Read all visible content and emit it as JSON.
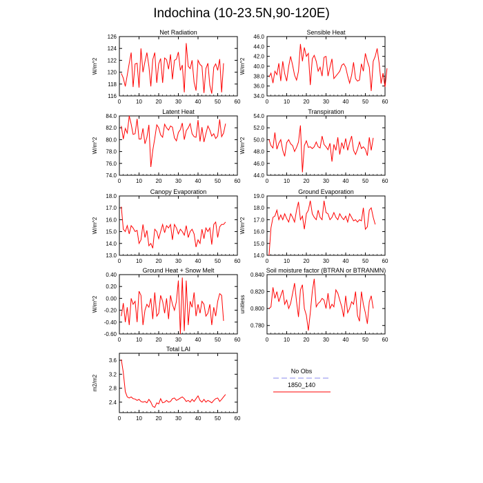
{
  "title": "Indochina (10-23.5N,90-120E)",
  "legend": {
    "items": [
      {
        "label": "No Obs",
        "color": "#8888ee",
        "dashed": true
      },
      {
        "label": "1850_140",
        "color": "#ff0000",
        "dashed": false
      }
    ]
  },
  "chart_data": [
    {
      "type": "line",
      "title": "Net Radiation",
      "xlabel": "",
      "ylabel": "W/m^2",
      "xlim": [
        0,
        60
      ],
      "ylim": [
        116,
        126
      ],
      "xticks": [
        "0",
        "10",
        "20",
        "30",
        "40",
        "50",
        "60"
      ],
      "yticks": [
        "116",
        "118",
        "120",
        "122",
        "124",
        "126"
      ],
      "series": [
        {
          "name": "1850_140",
          "color": "#ff0000",
          "values": [
            119.8,
            119.0,
            117.6,
            119.5,
            121.5,
            123.3,
            117.5,
            121.4,
            121.5,
            117.4,
            124.0,
            120.0,
            121.8,
            123.3,
            121.0,
            117.6,
            122.1,
            123.3,
            118.2,
            121.4,
            122.3,
            118.2,
            122.4,
            122.1,
            120.5,
            123.0,
            118.8,
            122.0,
            122.2,
            123.4,
            120.3,
            121.2,
            116.6,
            124.9,
            121.0,
            120.6,
            122.0,
            118.3,
            116.9,
            122.0,
            121.3,
            121.0,
            116.5,
            120.6,
            121.5,
            117.8,
            116.4,
            120.8,
            121.4,
            120.3,
            122.2,
            116.6,
            121.5
          ]
        }
      ]
    },
    {
      "type": "line",
      "title": "Sensible Heat",
      "xlabel": "",
      "ylabel": "W/m^2",
      "xlim": [
        0,
        60
      ],
      "ylim": [
        34,
        46
      ],
      "xticks": [
        "0",
        "10",
        "20",
        "30",
        "40",
        "50",
        "60"
      ],
      "yticks": [
        "34.0",
        "36.0",
        "38.0",
        "40.0",
        "42.0",
        "44.0",
        "46.0"
      ],
      "series": [
        {
          "name": "1850_140",
          "color": "#ff0000",
          "values": [
            37.8,
            38.6,
            36.6,
            39.0,
            38.3,
            40.6,
            37.0,
            41.0,
            38.5,
            37.0,
            40.0,
            42.0,
            40.2,
            38.2,
            37.2,
            39.0,
            44.5,
            41.0,
            43.8,
            42.0,
            42.6,
            36.2,
            41.5,
            42.2,
            41.0,
            39.0,
            39.8,
            38.0,
            41.8,
            42.0,
            38.0,
            39.8,
            41.5,
            37.5,
            38.0,
            38.5,
            39.0,
            40.2,
            40.5,
            39.8,
            38.0,
            36.6,
            38.2,
            40.8,
            37.5,
            37.0,
            37.2,
            40.5,
            39.0,
            42.6,
            41.0,
            39.8,
            35.0,
            41.0,
            42.0,
            43.6,
            40.6,
            36.5,
            38.6,
            35.8,
            39.6
          ]
        }
      ]
    },
    {
      "type": "line",
      "title": "Latent Heat",
      "xlabel": "",
      "ylabel": "W/m^2",
      "xlim": [
        0,
        60
      ],
      "ylim": [
        74,
        84
      ],
      "xticks": [
        "0",
        "10",
        "20",
        "30",
        "40",
        "50",
        "60"
      ],
      "yticks": [
        "74.0",
        "76.0",
        "78.0",
        "80.0",
        "82.0",
        "84.0"
      ],
      "series": [
        {
          "name": "1850_140",
          "color": "#ff0000",
          "values": [
            82.3,
            80.1,
            81.9,
            81.1,
            84.0,
            82.6,
            80.9,
            81.0,
            83.5,
            80.1,
            80.1,
            81.9,
            79.3,
            80.4,
            82.5,
            75.4,
            78.2,
            80.2,
            82.5,
            82.0,
            80.8,
            80.4,
            82.6,
            82.0,
            81.6,
            82.3,
            82.1,
            80.3,
            79.8,
            81.2,
            81.7,
            82.8,
            80.0,
            81.5,
            82.0,
            82.7,
            81.0,
            80.5,
            80.4,
            83.3,
            79.7,
            82.1,
            79.6,
            81.0,
            82.3,
            81.6,
            80.6,
            81.0,
            80.2,
            80.6,
            83.4,
            80.5,
            81.1,
            82.7
          ]
        }
      ]
    },
    {
      "type": "line",
      "title": "Transpiration",
      "xlabel": "",
      "ylabel": "W/m^2",
      "xlim": [
        0,
        60
      ],
      "ylim": [
        44,
        54
      ],
      "xticks": [
        "0",
        "10",
        "20",
        "30",
        "40",
        "50",
        "60"
      ],
      "yticks": [
        "44.0",
        "46.0",
        "48.0",
        "50.0",
        "52.0",
        "54.0"
      ],
      "series": [
        {
          "name": "1850_140",
          "color": "#ff0000",
          "values": [
            50.0,
            49.0,
            48.6,
            51.2,
            48.4,
            49.4,
            50.0,
            48.2,
            47.2,
            49.5,
            50.0,
            49.3,
            49.0,
            48.0,
            48.7,
            49.6,
            52.4,
            44.5,
            49.0,
            49.8,
            48.7,
            48.8,
            48.5,
            48.8,
            49.6,
            48.8,
            48.6,
            50.6,
            49.2,
            48.8,
            48.3,
            49.4,
            46.3,
            49.2,
            48.2,
            50.4,
            47.5,
            49.5,
            48.5,
            50.2,
            48.2,
            49.5,
            50.6,
            48.2,
            47.5,
            48.4,
            49.6,
            48.5,
            48.8,
            48.4,
            47.3,
            50.4,
            48.2,
            50.3
          ]
        }
      ]
    },
    {
      "type": "line",
      "title": "Canopy Evaporation",
      "xlabel": "",
      "ylabel": "W/m^2",
      "xlim": [
        0,
        60
      ],
      "ylim": [
        13,
        18
      ],
      "xticks": [
        "0",
        "10",
        "20",
        "30",
        "40",
        "50",
        "60"
      ],
      "yticks": [
        "13.0",
        "14.0",
        "15.0",
        "16.0",
        "17.0",
        "18.0"
      ],
      "series": [
        {
          "name": "1850_140",
          "color": "#ff0000",
          "values": [
            17.1,
            15.2,
            15.0,
            15.5,
            14.8,
            15.5,
            15.3,
            15.0,
            15.1,
            14.0,
            14.3,
            15.6,
            14.5,
            15.1,
            13.8,
            14.0,
            13.6,
            15.2,
            15.0,
            14.4,
            15.0,
            15.6,
            14.9,
            15.5,
            15.3,
            15.6,
            14.3,
            15.6,
            15.3,
            14.8,
            15.2,
            15.0,
            14.7,
            15.5,
            14.5,
            15.0,
            15.2,
            14.8,
            13.7,
            14.3,
            14.0,
            15.2,
            14.4,
            15.3,
            15.0,
            15.3,
            13.9,
            15.6,
            15.8,
            14.5,
            15.4,
            15.6,
            15.6,
            15.8
          ]
        }
      ]
    },
    {
      "type": "line",
      "title": "Ground Evaporation",
      "xlabel": "",
      "ylabel": "W/m^2",
      "xlim": [
        0,
        60
      ],
      "ylim": [
        14,
        19
      ],
      "xticks": [
        "0",
        "10",
        "20",
        "30",
        "40",
        "50",
        "60"
      ],
      "yticks": [
        "14.0",
        "15.0",
        "16.0",
        "17.0",
        "18.0",
        "19.0"
      ],
      "series": [
        {
          "name": "1850_140",
          "color": "#ff0000",
          "values": [
            14.0,
            16.3,
            17.2,
            17.3,
            17.8,
            17.0,
            17.4,
            17.0,
            17.5,
            17.1,
            16.8,
            17.5,
            17.2,
            16.8,
            17.8,
            18.5,
            17.0,
            17.3,
            16.2,
            17.5,
            17.8,
            18.6,
            17.5,
            17.2,
            17.0,
            17.8,
            17.2,
            17.0,
            18.6,
            17.6,
            17.5,
            17.0,
            17.2,
            17.6,
            17.2,
            17.0,
            17.5,
            17.2,
            17.0,
            17.3,
            16.8,
            17.5,
            17.2,
            16.9,
            17.0,
            16.8,
            17.0,
            16.9,
            18.0,
            16.2,
            16.4,
            17.8,
            18.0,
            17.2,
            16.6
          ]
        }
      ]
    },
    {
      "type": "line",
      "title": "Ground Heat + Snow Melt",
      "xlabel": "",
      "ylabel": "W/m^2",
      "xlim": [
        0,
        60
      ],
      "ylim": [
        -0.6,
        0.4
      ],
      "xticks": [
        "0",
        "10",
        "20",
        "30",
        "40",
        "50",
        "60"
      ],
      "yticks": [
        "-0.60",
        "-0.40",
        "-0.20",
        "0.00",
        "0.20",
        "0.40"
      ],
      "series": [
        {
          "name": "1850_140",
          "color": "#ff0000",
          "values": [
            -0.3,
            -0.08,
            -0.4,
            -0.15,
            -0.45,
            0.0,
            -0.1,
            -0.05,
            -0.4,
            0.12,
            0.05,
            -0.45,
            -0.2,
            -0.1,
            -0.15,
            0.0,
            -0.35,
            0.1,
            -0.3,
            -0.25,
            0.05,
            -0.05,
            -0.25,
            0.0,
            -0.35,
            0.05,
            -0.1,
            -0.2,
            -0.05,
            0.3,
            -0.6,
            0.35,
            -0.55,
            0.3,
            -0.45,
            -0.05,
            -0.15,
            0.1,
            -0.3,
            -0.1,
            -0.25,
            -0.05,
            -0.1,
            -0.3,
            -0.25,
            -0.1,
            -0.45,
            -0.15,
            -0.3,
            -0.05,
            0.08,
            0.05,
            -0.38
          ]
        }
      ]
    },
    {
      "type": "line",
      "title": "Soil moisture factor (BTRAN or BTRANMN)",
      "xlabel": "",
      "ylabel": "unitless",
      "xlim": [
        0,
        60
      ],
      "ylim": [
        0.77,
        0.84
      ],
      "xticks": [
        "0",
        "10",
        "20",
        "30",
        "40",
        "50",
        "60"
      ],
      "yticks": [
        "0.780",
        "0.800",
        "0.820",
        "0.840"
      ],
      "series": [
        {
          "name": "1850_140",
          "color": "#ff0000",
          "values": [
            0.8,
            0.802,
            0.825,
            0.812,
            0.82,
            0.808,
            0.815,
            0.822,
            0.805,
            0.81,
            0.8,
            0.806,
            0.818,
            0.83,
            0.808,
            0.79,
            0.822,
            0.828,
            0.8,
            0.792,
            0.774,
            0.795,
            0.82,
            0.835,
            0.802,
            0.806,
            0.808,
            0.812,
            0.81,
            0.8,
            0.818,
            0.8,
            0.805,
            0.802,
            0.822,
            0.818,
            0.81,
            0.802,
            0.79,
            0.815,
            0.795,
            0.8,
            0.808,
            0.805,
            0.82,
            0.792,
            0.785,
            0.82,
            0.805,
            0.795,
            0.782,
            0.808,
            0.815,
            0.8
          ]
        }
      ]
    },
    {
      "type": "line",
      "title": "Total LAI",
      "xlabel": "",
      "ylabel": "m2/m2",
      "xlim": [
        0,
        60
      ],
      "ylim": [
        2.1,
        3.8
      ],
      "xticks": [
        "0",
        "10",
        "20",
        "30",
        "40",
        "50",
        "60"
      ],
      "yticks": [
        "2.4",
        "2.8",
        "3.2",
        "3.6"
      ],
      "series": [
        {
          "name": "1850_140",
          "color": "#ff0000",
          "values": [
            3.62,
            3.25,
            2.7,
            2.55,
            2.52,
            2.55,
            2.5,
            2.49,
            2.45,
            2.48,
            2.42,
            2.4,
            2.42,
            2.38,
            2.48,
            2.4,
            2.28,
            2.25,
            2.38,
            2.35,
            2.5,
            2.38,
            2.4,
            2.45,
            2.4,
            2.42,
            2.5,
            2.52,
            2.45,
            2.48,
            2.52,
            2.55,
            2.5,
            2.42,
            2.45,
            2.4,
            2.48,
            2.42,
            2.5,
            2.58,
            2.45,
            2.4,
            2.48,
            2.4,
            2.45,
            2.42,
            2.38,
            2.45,
            2.5,
            2.52,
            2.42,
            2.48,
            2.55,
            2.62
          ]
        }
      ]
    }
  ]
}
